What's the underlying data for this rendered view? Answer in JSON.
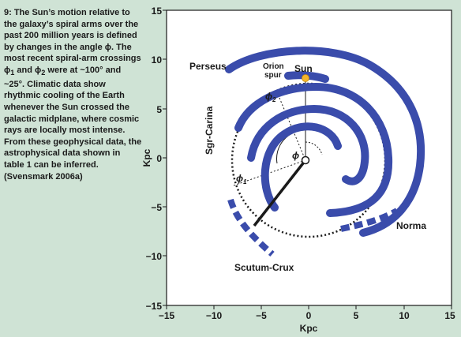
{
  "caption": {
    "part1": "9: The Sun’s motion relative to the galaxy’s spiral arms over the past 200 million years is defined by changes in the angle ",
    "phi": "ϕ",
    "part2": ". The most recent spiral-arm crossings ",
    "phi1": "ϕ",
    "sub1": "1",
    "and": " and ",
    "phi2": "ϕ",
    "sub2": "2",
    "part3": " were at ~100° and ~25°. Climatic data show rhythmic cooling of the Earth whenever the Sun crossed the galactic midplane, where cosmic rays are locally most intense. From these geophysical data, the astrophysical data shown in table 1 can be inferred. (Svensmark 2006a)"
  },
  "chart_data": {
    "type": "diagram",
    "xlabel": "Kpc",
    "ylabel": "Kpc",
    "xlim": [
      -15,
      15
    ],
    "ylim": [
      -15,
      15
    ],
    "xticks": [
      "−15",
      "−10",
      "−5",
      "0",
      "5",
      "10",
      "15"
    ],
    "yticks": [
      "15",
      "10",
      "5",
      "0",
      "−5",
      "−10",
      "−15"
    ],
    "arms": [
      {
        "name": "Perseus"
      },
      {
        "name": "Orion spur",
        "line1": "Orion",
        "line2": "spur"
      },
      {
        "name": "Sgr-Carina"
      },
      {
        "name": "Scutum-Crux"
      },
      {
        "name": "Norma"
      }
    ],
    "sun": {
      "label": "Sun",
      "x": -0.4,
      "y": 8.5
    },
    "angles": {
      "phi": "ϕ",
      "phi1": "ϕ",
      "phi1_sub": "1",
      "phi2": "ϕ",
      "phi2_sub": "2"
    },
    "colors": {
      "arm": "#3a4cab",
      "sun": "#f5b52a",
      "background": "#cfe3d5",
      "plot_bg": "#ffffff"
    }
  }
}
